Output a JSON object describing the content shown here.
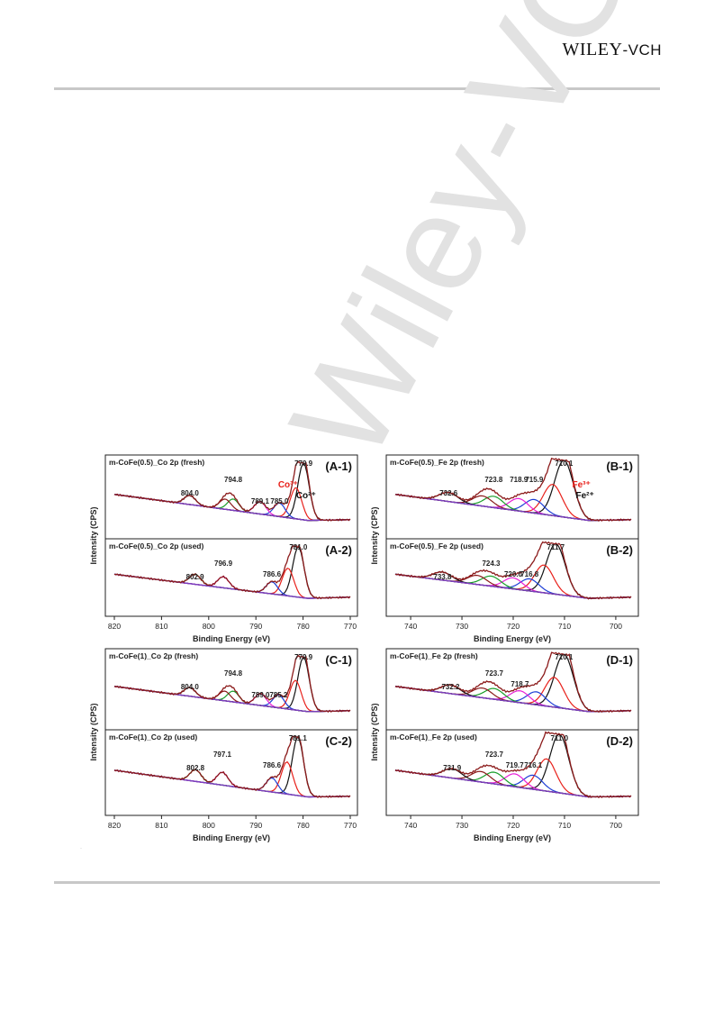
{
  "header": {
    "logo_main": "WILEY",
    "logo_suffix": "-VCH"
  },
  "watermark": {
    "text": "Wiley-VCH"
  },
  "figure": {
    "y_axis_label": "Intensity (CPS)",
    "x_axis_label": "Binding Energy (eV)",
    "marker": "·",
    "blocks": [
      {
        "id": "A",
        "ticks": [
          "820",
          "810",
          "800",
          "790",
          "780",
          "770"
        ],
        "xlim": [
          820,
          770
        ],
        "panels": [
          {
            "label": "(A-1)",
            "title": "m-CoFe(0.5)_Co 2p (fresh)",
            "peaks": [
              {
                "t": "779.9"
              },
              {
                "t": "794.8"
              },
              {
                "t": "804.0"
              },
              {
                "t": "789.1"
              },
              {
                "t": "785.0"
              }
            ],
            "annotations": [
              {
                "t": "Co³⁺",
                "color": "#e8211b"
              },
              {
                "t": "Co²⁺",
                "color": "#111111"
              }
            ]
          },
          {
            "label": "(A-2)",
            "title": "m-CoFe(0.5)_Co 2p (used)",
            "peaks": [
              {
                "t": "781.0"
              },
              {
                "t": "796.9"
              },
              {
                "t": "802.9"
              },
              {
                "t": "786.6"
              }
            ]
          }
        ]
      },
      {
        "id": "B",
        "ticks": [
          "740",
          "730",
          "720",
          "710",
          "700"
        ],
        "xlim": [
          743,
          697
        ],
        "panels": [
          {
            "label": "(B-1)",
            "title": "m-CoFe(0.5)_Fe 2p (fresh)",
            "peaks": [
              {
                "t": "710.1"
              },
              {
                "t": "723.8"
              },
              {
                "t": "718.9"
              },
              {
                "t": "715.9"
              },
              {
                "t": "732.6"
              }
            ],
            "annotations": [
              {
                "t": "Fe³⁺",
                "color": "#e8211b"
              },
              {
                "t": "Fe²⁺",
                "color": "#111111"
              }
            ]
          },
          {
            "label": "(B-2)",
            "title": "m-CoFe(0.5)_Fe 2p (used)",
            "peaks": [
              {
                "t": "711.7"
              },
              {
                "t": "724.3"
              },
              {
                "t": "720.0"
              },
              {
                "t": "716.8"
              },
              {
                "t": "733.8"
              }
            ]
          }
        ]
      },
      {
        "id": "C",
        "ticks": [
          "820",
          "810",
          "800",
          "790",
          "780",
          "770"
        ],
        "xlim": [
          820,
          770
        ],
        "panels": [
          {
            "label": "(C-1)",
            "title": "m-CoFe(1)_Co 2p (fresh)",
            "peaks": [
              {
                "t": "779.9"
              },
              {
                "t": "794.8"
              },
              {
                "t": "804.0"
              },
              {
                "t": "789.0"
              },
              {
                "t": "785.2"
              }
            ]
          },
          {
            "label": "(C-2)",
            "title": "m-CoFe(1)_Co 2p (used)",
            "peaks": [
              {
                "t": "781.1"
              },
              {
                "t": "797.1"
              },
              {
                "t": "802.8"
              },
              {
                "t": "786.6"
              }
            ]
          }
        ]
      },
      {
        "id": "D",
        "ticks": [
          "740",
          "730",
          "720",
          "710",
          "700"
        ],
        "xlim": [
          743,
          697
        ],
        "panels": [
          {
            "label": "(D-1)",
            "title": "m-CoFe(1)_Fe 2p (fresh)",
            "peaks": [
              {
                "t": "710.1"
              },
              {
                "t": "723.7"
              },
              {
                "t": "718.7"
              },
              {
                "t": "732.2"
              }
            ]
          },
          {
            "label": "(D-2)",
            "title": "m-CoFe(1)_Fe 2p (used)",
            "peaks": [
              {
                "t": "711.0"
              },
              {
                "t": "723.7"
              },
              {
                "t": "719.7"
              },
              {
                "t": "716.1"
              },
              {
                "t": "731.9"
              }
            ]
          }
        ]
      }
    ]
  },
  "chart_data": [
    {
      "type": "line",
      "title": "m-CoFe(0.5)_Co 2p (fresh)",
      "panel": "(A-1)",
      "xlabel": "Binding Energy (eV)",
      "ylabel": "Intensity (CPS)",
      "xlim": [
        820,
        770
      ],
      "axis_reversed": true,
      "fit_peaks_eV": [
        779.9,
        781.5,
        785.0,
        789.1,
        794.8,
        796.5,
        804.0
      ]
    },
    {
      "type": "line",
      "title": "m-CoFe(0.5)_Co 2p (used)",
      "panel": "(A-2)",
      "xlabel": "Binding Energy (eV)",
      "ylabel": "Intensity (CPS)",
      "xlim": [
        820,
        770
      ],
      "axis_reversed": true,
      "fit_peaks_eV": [
        781.0,
        783.2,
        786.6,
        796.9,
        802.9
      ]
    },
    {
      "type": "line",
      "title": "m-CoFe(0.5)_Fe 2p (fresh)",
      "panel": "(B-1)",
      "xlabel": "Binding Energy (eV)",
      "ylabel": "Intensity (CPS)",
      "xlim": [
        743,
        697
      ],
      "axis_reversed": true,
      "fit_peaks_eV": [
        710.1,
        712.3,
        715.9,
        718.9,
        723.8,
        726.0,
        732.6
      ]
    },
    {
      "type": "line",
      "title": "m-CoFe(0.5)_Fe 2p (used)",
      "panel": "(B-2)",
      "xlabel": "Binding Energy (eV)",
      "ylabel": "Intensity (CPS)",
      "xlim": [
        743,
        697
      ],
      "axis_reversed": true,
      "fit_peaks_eV": [
        711.7,
        714.0,
        716.8,
        720.0,
        724.3,
        727.0,
        733.8
      ]
    },
    {
      "type": "line",
      "title": "m-CoFe(1)_Co 2p (fresh)",
      "panel": "(C-1)",
      "xlabel": "Binding Energy (eV)",
      "ylabel": "Intensity (CPS)",
      "xlim": [
        820,
        770
      ],
      "axis_reversed": true,
      "fit_peaks_eV": [
        779.9,
        781.6,
        785.2,
        789.0,
        794.8,
        796.6,
        804.0
      ]
    },
    {
      "type": "line",
      "title": "m-CoFe(1)_Co 2p (used)",
      "panel": "(C-2)",
      "xlabel": "Binding Energy (eV)",
      "ylabel": "Intensity (CPS)",
      "xlim": [
        820,
        770
      ],
      "axis_reversed": true,
      "fit_peaks_eV": [
        781.1,
        783.4,
        786.6,
        797.1,
        802.8
      ]
    },
    {
      "type": "line",
      "title": "m-CoFe(1)_Fe 2p (fresh)",
      "panel": "(D-1)",
      "xlabel": "Binding Energy (eV)",
      "ylabel": "Intensity (CPS)",
      "xlim": [
        743,
        697
      ],
      "axis_reversed": true,
      "fit_peaks_eV": [
        710.1,
        712.0,
        715.5,
        718.7,
        723.7,
        726.0,
        732.2
      ]
    },
    {
      "type": "line",
      "title": "m-CoFe(1)_Fe 2p (used)",
      "panel": "(D-2)",
      "xlabel": "Binding Energy (eV)",
      "ylabel": "Intensity (CPS)",
      "xlim": [
        743,
        697
      ],
      "axis_reversed": true,
      "fit_peaks_eV": [
        711.0,
        713.5,
        716.1,
        719.7,
        723.7,
        726.3,
        731.9
      ]
    }
  ],
  "colors": {
    "experimental": "#8b1a1a",
    "envelope": "#8b1a1a",
    "background": "#7a3fbf",
    "component_palette": [
      "#111111",
      "#e8211b",
      "#1e3fd6",
      "#e81fd6",
      "#1a9e2a",
      "#8b1a1a"
    ]
  }
}
